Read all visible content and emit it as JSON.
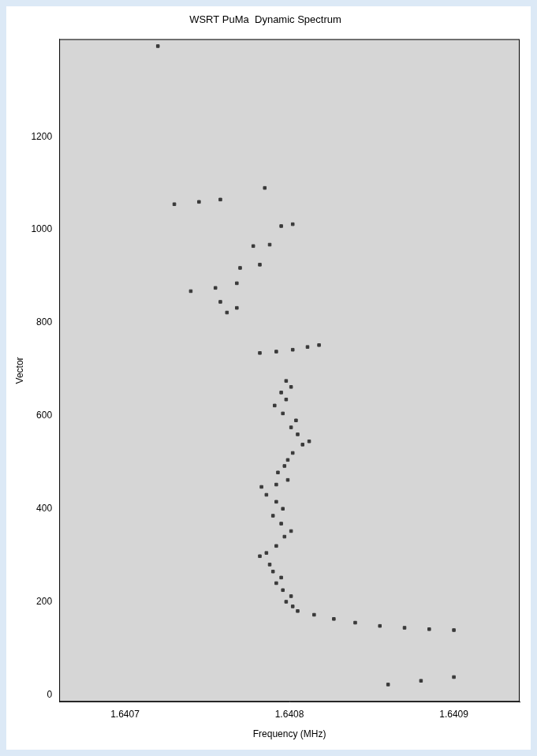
{
  "chart_data": {
    "type": "scatter",
    "title": "WSRT PuMa  Dynamic Spectrum",
    "x_label": "Frequency (MHz)",
    "y_label": "Vector",
    "x": [
      1.6409,
      1.640885,
      1.64087,
      1.640855,
      1.64084,
      1.640827,
      1.640815,
      1.640805,
      1.640802,
      1.640798,
      1.640801,
      1.640796,
      1.640792,
      1.640795,
      1.64079,
      1.640788,
      1.640782,
      1.640786,
      1.640792,
      1.640797,
      1.640801,
      1.640795,
      1.64079,
      1.640796,
      1.640792,
      1.640786,
      1.640783,
      1.640792,
      1.640799,
      1.640793,
      1.640797,
      1.640799,
      1.640802,
      1.640808,
      1.640812,
      1.640805,
      1.640801,
      1.640804,
      1.640796,
      1.640791,
      1.640798,
      1.640795,
      1.640801,
      1.640798,
      1.640782,
      1.640792,
      1.640802,
      1.640811,
      1.640818,
      1.640762,
      1.640768,
      1.640758,
      1.64074,
      1.640755,
      1.640768,
      1.64077,
      1.640782,
      1.640778,
      1.640788,
      1.640795,
      1.640802,
      1.64073,
      1.640745,
      1.640758,
      1.640785,
      1.64072,
      1.64086,
      1.64088,
      1.6409
    ],
    "values": [
      139,
      141,
      144,
      148,
      155,
      163,
      172,
      180,
      190,
      200,
      212,
      225,
      240,
      252,
      265,
      280,
      298,
      305,
      320,
      340,
      352,
      368,
      385,
      400,
      415,
      430,
      447,
      452,
      462,
      478,
      492,
      505,
      520,
      538,
      545,
      560,
      575,
      590,
      605,
      622,
      635,
      650,
      662,
      675,
      735,
      738,
      742,
      748,
      752,
      822,
      832,
      845,
      868,
      875,
      885,
      918,
      925,
      965,
      968,
      1008,
      1012,
      1055,
      1060,
      1065,
      1090,
      1395,
      22,
      30,
      38
    ],
    "color": "#3a3a3a",
    "marker": "square",
    "xlim": [
      1.64066,
      1.64094
    ],
    "xticks": [
      1.6407,
      1.6408,
      1.6409
    ],
    "ylim": [
      -15,
      1410
    ],
    "yticks": [
      0,
      200,
      400,
      600,
      800,
      1000,
      1200
    ],
    "grid": false
  }
}
